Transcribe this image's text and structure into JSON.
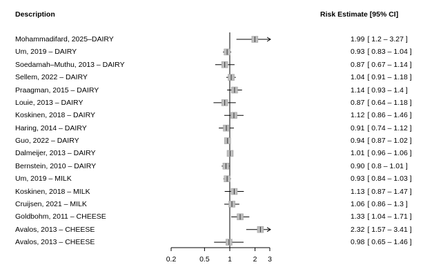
{
  "header": {
    "description": "Description",
    "risk": "Risk Estimate  [95% CI]"
  },
  "chart_data": {
    "type": "forest",
    "x_scale": "log",
    "xlim": [
      0.2,
      3
    ],
    "ticks": [
      {
        "value": 0.2,
        "label": "0.2"
      },
      {
        "value": 0.5,
        "label": "0.5"
      },
      {
        "value": 1,
        "label": "1"
      },
      {
        "value": 2,
        "label": "2"
      },
      {
        "value": 3,
        "label": "3"
      }
    ],
    "reference_line": 1,
    "rows": [
      {
        "label": "Mohammadifard, 2025–DAIRY",
        "est_text": "1.99",
        "ci_text": "[ 1.2 – 3.27 ]",
        "estimate": 1.99,
        "lower": 1.2,
        "upper": 3.27
      },
      {
        "label": "Um, 2019 – DAIRY",
        "est_text": "0.93",
        "ci_text": "[ 0.83 – 1.04 ]",
        "estimate": 0.93,
        "lower": 0.83,
        "upper": 1.04
      },
      {
        "label": "Soedamah–Muthu, 2013 – DAIRY",
        "est_text": "0.87",
        "ci_text": "[ 0.67 – 1.14 ]",
        "estimate": 0.87,
        "lower": 0.67,
        "upper": 1.14
      },
      {
        "label": "Sellem, 2022 – DAIRY",
        "est_text": "1.04",
        "ci_text": "[ 0.91 – 1.18 ]",
        "estimate": 1.04,
        "lower": 0.91,
        "upper": 1.18
      },
      {
        "label": "Praagman, 2015 – DAIRY",
        "est_text": "1.14",
        "ci_text": "[ 0.93 – 1.4 ]",
        "estimate": 1.14,
        "lower": 0.93,
        "upper": 1.4
      },
      {
        "label": "Louie, 2013 – DAIRY",
        "est_text": "0.87",
        "ci_text": "[ 0.64 – 1.18 ]",
        "estimate": 0.87,
        "lower": 0.64,
        "upper": 1.18
      },
      {
        "label": "Koskinen, 2018 – DAIRY",
        "est_text": "1.12",
        "ci_text": "[ 0.86 – 1.46 ]",
        "estimate": 1.12,
        "lower": 0.86,
        "upper": 1.46
      },
      {
        "label": "Haring, 2014 – DAIRY",
        "est_text": "0.91",
        "ci_text": "[ 0.74 – 1.12 ]",
        "estimate": 0.91,
        "lower": 0.74,
        "upper": 1.12
      },
      {
        "label": "Guo, 2022 – DAIRY",
        "est_text": "0.94",
        "ci_text": "[ 0.87 – 1.02 ]",
        "estimate": 0.94,
        "lower": 0.87,
        "upper": 1.02
      },
      {
        "label": "Dalmeijer, 2013 – DAIRY",
        "est_text": "1.01",
        "ci_text": "[ 0.96 – 1.06 ]",
        "estimate": 1.01,
        "lower": 0.96,
        "upper": 1.06
      },
      {
        "label": "Bernstein, 2010 – DAIRY",
        "est_text": "0.90",
        "ci_text": "[ 0.8 – 1.01 ]",
        "estimate": 0.9,
        "lower": 0.8,
        "upper": 1.01
      },
      {
        "label": "Um, 2019 – MILK",
        "est_text": "0.93",
        "ci_text": "[ 0.84 – 1.03 ]",
        "estimate": 0.93,
        "lower": 0.84,
        "upper": 1.03
      },
      {
        "label": "Koskinen, 2018 – MILK",
        "est_text": "1.13",
        "ci_text": "[ 0.87 – 1.47 ]",
        "estimate": 1.13,
        "lower": 0.87,
        "upper": 1.47
      },
      {
        "label": "Cruijsen, 2021 – MILK",
        "est_text": "1.06",
        "ci_text": "[ 0.86 – 1.3 ]",
        "estimate": 1.06,
        "lower": 0.86,
        "upper": 1.3
      },
      {
        "label": "Goldbohm, 2011 – CHEESE",
        "est_text": "1.33",
        "ci_text": "[ 1.04 – 1.71 ]",
        "estimate": 1.33,
        "lower": 1.04,
        "upper": 1.71
      },
      {
        "label": "Avalos, 2013 – CHEESE",
        "est_text": "2.32",
        "ci_text": "[ 1.57 – 3.41 ]",
        "estimate": 2.32,
        "lower": 1.57,
        "upper": 3.41
      },
      {
        "label": "Avalos, 2013 – CHEESE",
        "est_text": "0.98",
        "ci_text": "[ 0.65 – 1.46 ]",
        "estimate": 0.98,
        "lower": 0.65,
        "upper": 1.46
      }
    ],
    "colors": {
      "box": "#bdbdbd",
      "box_stroke": "#9a9a9a",
      "line": "#000000"
    }
  }
}
